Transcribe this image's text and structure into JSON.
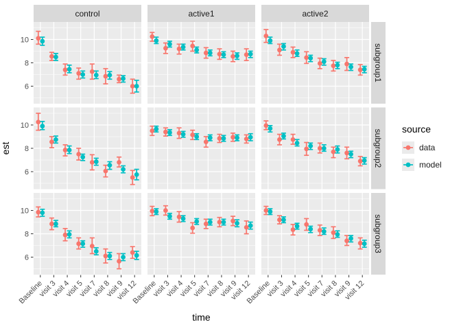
{
  "chart_data": {
    "type": "pointrange-facet-grid",
    "title": "",
    "xlabel": "time",
    "ylabel": "est",
    "legend_title": "source",
    "legend_position": "right",
    "grid": true,
    "ylim": [
      4.5,
      11.5
    ],
    "y_ticks": [
      6,
      8,
      10
    ],
    "y_minor_ticks": [
      5,
      7,
      9,
      11
    ],
    "categories": [
      "Baseline",
      "visit 3",
      "visit 4",
      "visit 5",
      "visit 7",
      "visit 8",
      "visit 9",
      "visit 12"
    ],
    "col_facets": [
      "control",
      "active1",
      "active2"
    ],
    "row_facets": [
      "subgroup1",
      "subgroup2",
      "subgroup3"
    ],
    "series": [
      {
        "name": "data",
        "key": "data",
        "color": "#F8766D"
      },
      {
        "name": "model",
        "key": "model",
        "color": "#00BFC4"
      }
    ],
    "theme": {
      "panel_bg": "#EBEBEB",
      "strip_bg": "#D9D9D9",
      "gridline": "#FFFFFF",
      "tick_color": "#333333",
      "axis_text": "#4D4D4D"
    },
    "panels": [
      {
        "row": "subgroup1",
        "col": "control",
        "data": {
          "est": [
            10.1,
            8.55,
            7.4,
            7.1,
            7.25,
            6.85,
            6.6,
            6.0
          ],
          "lo": [
            9.6,
            8.2,
            6.95,
            6.6,
            6.6,
            6.2,
            6.3,
            5.4
          ],
          "hi": [
            10.7,
            8.9,
            7.9,
            7.55,
            7.9,
            7.5,
            6.95,
            6.6
          ]
        },
        "model": {
          "est": [
            9.85,
            8.5,
            7.45,
            7.0,
            6.95,
            6.95,
            6.65,
            6.0
          ],
          "lo": [
            9.5,
            8.2,
            7.15,
            6.7,
            6.65,
            6.6,
            6.35,
            5.5
          ],
          "hi": [
            10.2,
            8.8,
            7.8,
            7.3,
            7.3,
            7.25,
            6.9,
            6.5
          ]
        }
      },
      {
        "row": "subgroup1",
        "col": "active1",
        "data": {
          "est": [
            10.25,
            9.25,
            9.2,
            9.45,
            8.85,
            8.75,
            8.55,
            8.7
          ],
          "lo": [
            9.85,
            8.8,
            8.75,
            9.0,
            8.4,
            8.3,
            8.1,
            8.2
          ],
          "hi": [
            10.6,
            9.7,
            9.6,
            9.85,
            9.3,
            9.2,
            9.0,
            9.2
          ]
        },
        "model": {
          "est": [
            9.9,
            9.6,
            9.35,
            9.1,
            8.85,
            8.7,
            8.6,
            8.75
          ],
          "lo": [
            9.65,
            9.35,
            9.1,
            8.85,
            8.6,
            8.45,
            8.3,
            8.45
          ],
          "hi": [
            10.2,
            9.85,
            9.6,
            9.35,
            9.1,
            8.95,
            8.85,
            9.0
          ]
        }
      },
      {
        "row": "subgroup1",
        "col": "active2",
        "data": {
          "est": [
            10.3,
            9.1,
            8.9,
            8.45,
            7.95,
            7.75,
            7.9,
            7.4
          ],
          "lo": [
            9.75,
            8.65,
            8.45,
            7.95,
            7.5,
            7.3,
            7.35,
            6.95
          ],
          "hi": [
            10.85,
            9.6,
            9.35,
            8.95,
            8.4,
            8.2,
            8.45,
            7.85
          ]
        },
        "model": {
          "est": [
            9.9,
            9.4,
            8.8,
            8.4,
            8.1,
            7.8,
            7.65,
            7.45
          ],
          "lo": [
            9.65,
            9.1,
            8.55,
            8.1,
            7.8,
            7.5,
            7.35,
            7.15
          ],
          "hi": [
            10.2,
            9.65,
            9.1,
            8.65,
            8.35,
            8.05,
            7.9,
            7.7
          ]
        }
      },
      {
        "row": "subgroup2",
        "col": "control",
        "data": {
          "est": [
            10.25,
            8.55,
            7.85,
            7.5,
            6.8,
            6.05,
            6.8,
            5.5
          ],
          "lo": [
            9.55,
            8.05,
            7.35,
            7.0,
            6.15,
            5.55,
            6.4,
            4.9
          ],
          "hi": [
            11.0,
            9.0,
            8.3,
            8.0,
            7.45,
            6.55,
            7.25,
            6.1
          ]
        },
        "model": {
          "est": [
            9.9,
            8.75,
            7.85,
            7.25,
            6.85,
            6.55,
            6.2,
            5.75
          ],
          "lo": [
            9.6,
            8.45,
            7.55,
            6.95,
            6.55,
            6.2,
            5.9,
            5.3
          ],
          "hi": [
            10.3,
            9.05,
            8.2,
            7.5,
            7.15,
            6.85,
            6.5,
            6.2
          ]
        }
      },
      {
        "row": "subgroup2",
        "col": "active1",
        "data": {
          "est": [
            9.5,
            9.4,
            9.3,
            9.15,
            8.55,
            8.85,
            8.95,
            8.8
          ],
          "lo": [
            9.1,
            9.05,
            8.85,
            8.75,
            8.1,
            8.5,
            8.6,
            8.45
          ],
          "hi": [
            9.9,
            9.75,
            9.75,
            9.55,
            9.0,
            9.2,
            9.3,
            9.15
          ]
        },
        "model": {
          "est": [
            9.65,
            9.35,
            9.2,
            9.0,
            8.9,
            8.85,
            8.9,
            8.95
          ],
          "lo": [
            9.4,
            9.1,
            8.95,
            8.75,
            8.65,
            8.6,
            8.65,
            8.65
          ],
          "hi": [
            9.9,
            9.6,
            9.45,
            9.25,
            9.15,
            9.1,
            9.15,
            9.25
          ]
        }
      },
      {
        "row": "subgroup2",
        "col": "active2",
        "data": {
          "est": [
            9.95,
            8.75,
            8.75,
            7.95,
            8.0,
            7.7,
            7.6,
            6.9
          ],
          "lo": [
            9.6,
            8.3,
            8.35,
            7.4,
            7.6,
            7.2,
            7.1,
            6.5
          ],
          "hi": [
            10.35,
            9.2,
            9.2,
            8.5,
            8.45,
            8.1,
            8.1,
            7.3
          ]
        },
        "model": {
          "est": [
            9.7,
            9.05,
            8.45,
            8.2,
            8.0,
            7.9,
            7.5,
            6.95
          ],
          "lo": [
            9.4,
            8.8,
            8.2,
            7.9,
            7.75,
            7.6,
            7.2,
            6.65
          ],
          "hi": [
            9.95,
            9.3,
            8.75,
            8.45,
            8.3,
            8.2,
            7.75,
            7.2
          ]
        }
      },
      {
        "row": "subgroup3",
        "col": "control",
        "data": {
          "est": [
            9.85,
            8.85,
            7.9,
            7.15,
            6.95,
            6.1,
            5.65,
            6.4
          ],
          "lo": [
            9.45,
            8.35,
            7.4,
            6.7,
            6.3,
            5.5,
            5.0,
            5.9
          ],
          "hi": [
            10.3,
            9.35,
            8.45,
            7.65,
            7.65,
            6.7,
            6.3,
            6.9
          ]
        },
        "model": {
          "est": [
            9.8,
            8.85,
            7.95,
            7.15,
            6.5,
            6.1,
            6.0,
            6.15
          ],
          "lo": [
            9.5,
            8.6,
            7.65,
            6.85,
            6.2,
            5.8,
            5.7,
            5.8
          ],
          "hi": [
            10.1,
            9.15,
            8.25,
            7.4,
            6.8,
            6.4,
            6.3,
            6.5
          ]
        }
      },
      {
        "row": "subgroup3",
        "col": "active1",
        "data": {
          "est": [
            9.95,
            10.0,
            9.45,
            8.5,
            8.85,
            9.0,
            9.1,
            8.55
          ],
          "lo": [
            9.55,
            9.6,
            9.0,
            8.05,
            8.45,
            8.6,
            8.7,
            8.0
          ],
          "hi": [
            10.35,
            10.4,
            9.9,
            8.95,
            9.25,
            9.4,
            9.5,
            9.1
          ]
        },
        "model": {
          "est": [
            9.9,
            9.5,
            9.3,
            9.05,
            9.0,
            9.0,
            8.9,
            8.7
          ],
          "lo": [
            9.65,
            9.25,
            9.05,
            8.8,
            8.75,
            8.75,
            8.6,
            8.4
          ],
          "hi": [
            10.15,
            9.75,
            9.55,
            9.3,
            9.25,
            9.25,
            9.2,
            9.0
          ]
        }
      },
      {
        "row": "subgroup3",
        "col": "active2",
        "data": {
          "est": [
            10.0,
            9.2,
            8.35,
            8.8,
            8.3,
            8.1,
            7.4,
            7.2
          ],
          "lo": [
            9.65,
            8.85,
            7.9,
            8.3,
            7.85,
            7.6,
            7.0,
            6.7
          ],
          "hi": [
            10.35,
            9.55,
            8.8,
            9.3,
            8.75,
            8.6,
            7.85,
            7.65
          ]
        },
        "model": {
          "est": [
            9.9,
            9.2,
            8.65,
            8.4,
            8.2,
            7.95,
            7.6,
            7.15
          ],
          "lo": [
            9.65,
            8.95,
            8.4,
            8.1,
            7.95,
            7.7,
            7.3,
            6.85
          ],
          "hi": [
            10.15,
            9.45,
            8.9,
            8.65,
            8.5,
            8.25,
            7.85,
            7.45
          ]
        }
      }
    ]
  }
}
